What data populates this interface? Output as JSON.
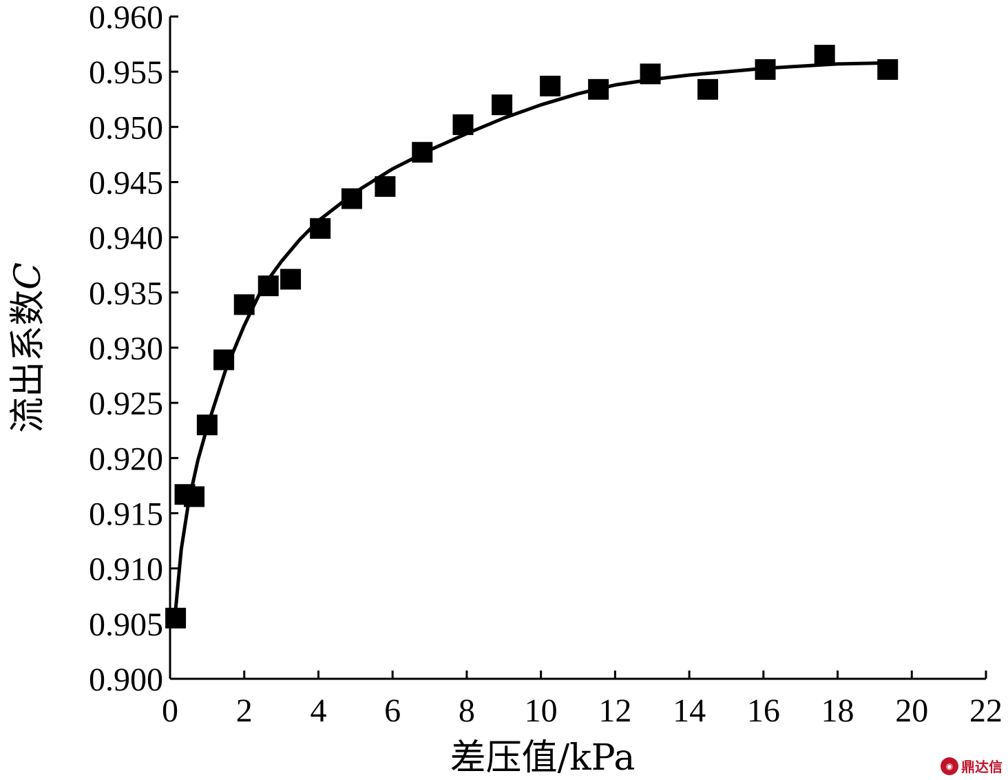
{
  "chart_data": {
    "type": "scatter",
    "xlabel": "差压值/kPa",
    "ylabel_main": "流出系数",
    "ylabel_symbol": "C",
    "xlim": [
      0,
      22
    ],
    "ylim": [
      0.9,
      0.96
    ],
    "x_ticks": [
      "0",
      "2",
      "4",
      "6",
      "8",
      "10",
      "12",
      "14",
      "16",
      "18",
      "20",
      "22"
    ],
    "y_ticks": [
      "0.900",
      "0.905",
      "0.910",
      "0.915",
      "0.920",
      "0.925",
      "0.930",
      "0.935",
      "0.940",
      "0.945",
      "0.950",
      "0.955",
      "0.960"
    ],
    "grid": false,
    "points": [
      {
        "x": 0.15,
        "y": 0.9055
      },
      {
        "x": 0.4,
        "y": 0.9167
      },
      {
        "x": 0.65,
        "y": 0.9165
      },
      {
        "x": 1.0,
        "y": 0.923
      },
      {
        "x": 1.45,
        "y": 0.9289
      },
      {
        "x": 2.0,
        "y": 0.9339
      },
      {
        "x": 2.65,
        "y": 0.9356
      },
      {
        "x": 3.25,
        "y": 0.9362
      },
      {
        "x": 4.05,
        "y": 0.9408
      },
      {
        "x": 4.9,
        "y": 0.9435
      },
      {
        "x": 5.8,
        "y": 0.9446
      },
      {
        "x": 6.8,
        "y": 0.9477
      },
      {
        "x": 7.9,
        "y": 0.9502
      },
      {
        "x": 8.95,
        "y": 0.952
      },
      {
        "x": 10.25,
        "y": 0.9537
      },
      {
        "x": 11.55,
        "y": 0.9534
      },
      {
        "x": 12.95,
        "y": 0.9548
      },
      {
        "x": 14.5,
        "y": 0.9534
      },
      {
        "x": 16.05,
        "y": 0.9552
      },
      {
        "x": 17.65,
        "y": 0.9565
      },
      {
        "x": 19.35,
        "y": 0.9552
      }
    ],
    "fit_curve": {
      "x": [
        0.15,
        0.3,
        0.5,
        0.75,
        1.0,
        1.5,
        2.0,
        2.5,
        3.0,
        3.5,
        4.0,
        5.0,
        6.0,
        7.0,
        8.0,
        9.0,
        10.0,
        11.0,
        12.0,
        13.0,
        14.0,
        15.0,
        16.0,
        17.0,
        18.0,
        19.4
      ],
      "y": [
        0.9063,
        0.9117,
        0.916,
        0.9198,
        0.9228,
        0.928,
        0.932,
        0.9355,
        0.9378,
        0.9398,
        0.9415,
        0.9441,
        0.9462,
        0.9479,
        0.9494,
        0.9508,
        0.952,
        0.953,
        0.9538,
        0.9543,
        0.9547,
        0.955,
        0.9553,
        0.9555,
        0.9557,
        0.9558
      ]
    }
  },
  "watermark": {
    "text": "鼎达信",
    "icon": "logo-icon"
  }
}
